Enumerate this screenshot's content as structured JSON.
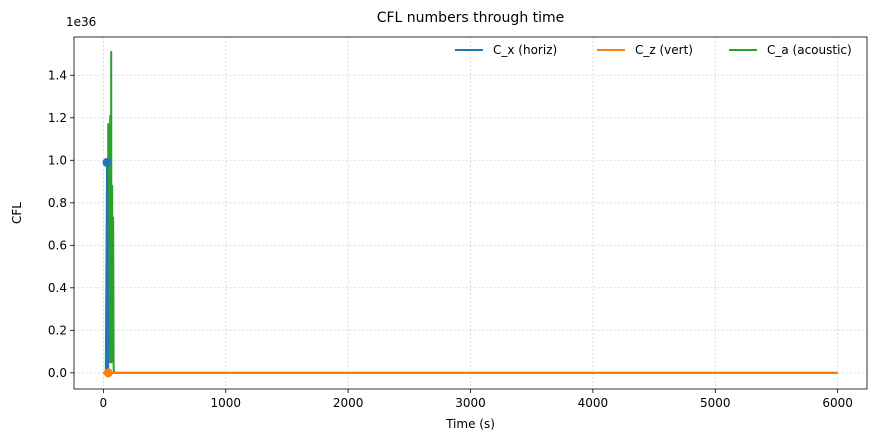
{
  "chart_data": {
    "type": "line",
    "title": "CFL numbers through time",
    "xlabel": "Time (s)",
    "ylabel": "CFL",
    "y_offset_text": "1e36",
    "xlim": [
      -240,
      6240
    ],
    "ylim": [
      -0.076,
      1.58
    ],
    "xticks": [
      0,
      1000,
      2000,
      3000,
      4000,
      5000,
      6000
    ],
    "xtick_labels": [
      "0",
      "1000",
      "2000",
      "3000",
      "4000",
      "5000",
      "6000"
    ],
    "yticks": [
      0.0,
      0.2,
      0.4,
      0.6,
      0.8,
      1.0,
      1.2,
      1.4
    ],
    "ytick_labels": [
      "0.0",
      "0.2",
      "0.4",
      "0.6",
      "0.8",
      "1.0",
      "1.2",
      "1.4"
    ],
    "grid": true,
    "legend_position": "top-right",
    "series": [
      {
        "name": "C_x (horiz)",
        "color": "#1f77b4",
        "x": [
          0,
          20,
          30,
          40,
          6000
        ],
        "y": [
          0,
          0,
          0.99,
          0,
          0
        ],
        "markers": [
          {
            "x": 30,
            "y": 0.99
          }
        ]
      },
      {
        "name": "C_z (vert)",
        "color": "#ff7f0e",
        "x": [
          0,
          30,
          40,
          6000
        ],
        "y": [
          0,
          0,
          0,
          0
        ],
        "markers": [
          {
            "x": 40,
            "y": 0.0
          }
        ]
      },
      {
        "name": "C_a (acoustic)",
        "color": "#2ca02c",
        "x": [
          0,
          25,
          30,
          34,
          36,
          38,
          40,
          42,
          44,
          46,
          48,
          50,
          52,
          54,
          56,
          58,
          60,
          62,
          64,
          66,
          68,
          70,
          72,
          74,
          76,
          78,
          80,
          84,
          88,
          100,
          320,
          6000
        ],
        "y": [
          0,
          0,
          0.05,
          0.4,
          0.9,
          0.2,
          1.17,
          0.1,
          0.98,
          0.3,
          1.14,
          0.05,
          0.85,
          0.2,
          1.21,
          0.1,
          0.95,
          0.05,
          1.51,
          0.2,
          0.74,
          0.05,
          0.88,
          0.1,
          0.6,
          0.05,
          0.73,
          0.02,
          0,
          0,
          0,
          0
        ]
      }
    ]
  }
}
